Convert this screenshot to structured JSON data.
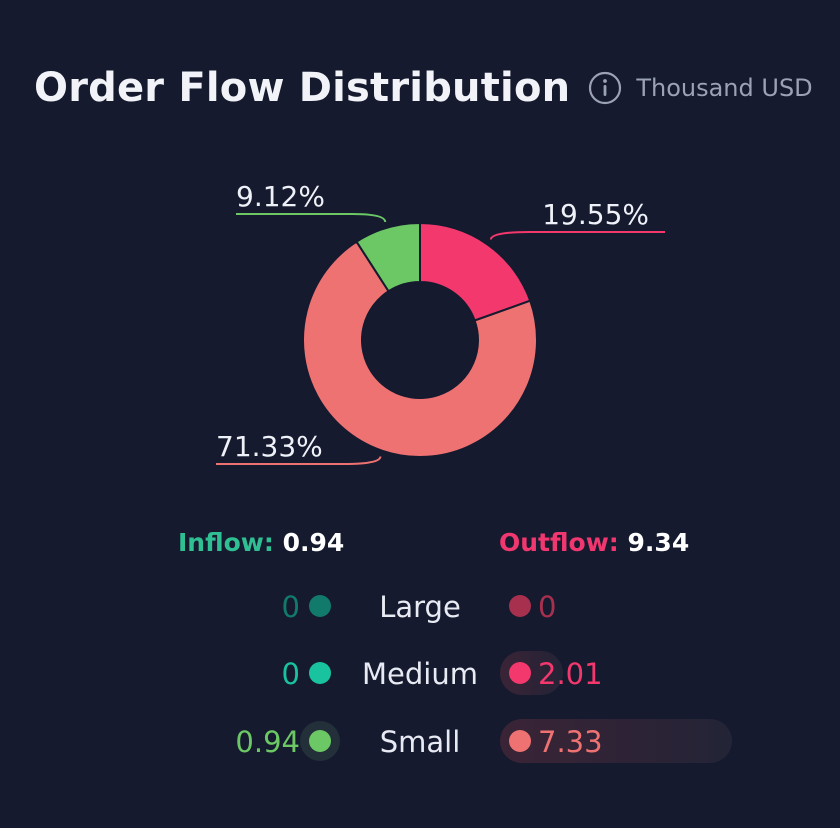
{
  "header": {
    "title": "Order Flow Distribution",
    "info_icon": "info-circle-icon",
    "unit": "Thousand USD"
  },
  "chart_data": {
    "type": "pie",
    "donut": true,
    "slices": [
      {
        "label": "19.55%",
        "value": 19.55,
        "color": "#f2386d"
      },
      {
        "label": "71.33%",
        "value": 71.33,
        "color": "#ef7272"
      },
      {
        "label": "9.12%",
        "value": 9.12,
        "color": "#6cc865"
      }
    ]
  },
  "totals": {
    "inflow_label": "Inflow:",
    "inflow_value": "0.94",
    "outflow_label": "Outflow:",
    "outflow_value": "9.34"
  },
  "rows": [
    {
      "category": "Large",
      "inflow": "0",
      "outflow": "0",
      "in_color": "#127a6b",
      "out_color": "#a8304f",
      "in_text_color": "#127a6b",
      "out_text_color": "#a8304f",
      "outflow_fraction": 0
    },
    {
      "category": "Medium",
      "inflow": "0",
      "outflow": "2.01",
      "in_color": "#19c3a0",
      "out_color": "#f2386d",
      "in_text_color": "#19c3a0",
      "out_text_color": "#f2386d",
      "outflow_fraction": 0.2152
    },
    {
      "category": "Small",
      "inflow": "0.94",
      "outflow": "7.33",
      "in_color": "#6cc865",
      "out_color": "#ef7272",
      "in_text_color": "#6cc865",
      "out_text_color": "#ef7272",
      "outflow_fraction": 0.7848
    }
  ]
}
